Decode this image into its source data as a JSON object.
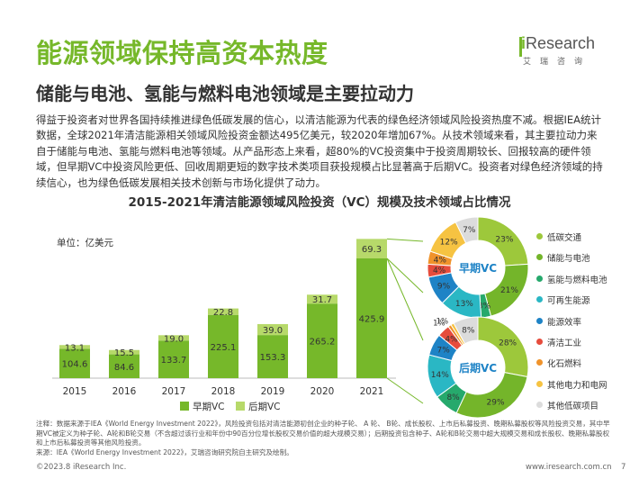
{
  "page": {
    "title": "能源领域保持高资本热度",
    "subtitle": "储能与电池、氢能与燃料电池领域是主要拉动力",
    "body": "得益于投资者对世界各国持续推进绿色低碳发展的信心，以清洁能源为代表的绿色经济领域风险投资热度不减。根据IEA统计数据，全球2021年清洁能源相关领域风险投资金额达495亿美元，较2020年增加67%。从技术领域来看，其主要拉动力来自于储能与电池、氢能与燃料电池等领域。从产品形态上来看，超80%的VC投资集中于投资周期较长、回报较高的硬件领域，但早期VC中投资风险更低、回收周期更短的数字技术类项目获投规模占比显著高于后期VC。投资者对绿色经济领域的持续信心，也为绿色低碳发展相关技术创新与市场化提供了动力。",
    "unit_label": "单位：亿美元",
    "notes": "注释：数据来源于IEA《World Energy Investment 2022》，风险投资包括对清洁能源初创企业的种子轮、 A 轮、 B轮、成长股权、上市后私募投资、晚期私募股权等风险投资交易，其中早期VC被定义为种子轮、A轮和B轮交易（不含超过该行业和年份中90百分位增长股权交易价值的超大规模交易）；后期投资包含种子、A轮和B轮交易中超大规模交易和成长股权、晚期私募股权和上市后私募投资等其他风险投资。",
    "source": "来源：IEA《World Energy Investment 2022》，艾瑞咨询研究院自主研究及绘制。",
    "footer_left": "©2023.8 iResearch Inc.",
    "footer_right": "www.iresearch.com.cn",
    "page_number": "7"
  },
  "logo": {
    "prefix": "i",
    "name": "Research",
    "sub": "艾瑞咨询"
  },
  "colors": {
    "early": "#76b82a",
    "late": "#b7d96a"
  },
  "chart_data": [
    {
      "type": "bar",
      "title": "2015-2021年清洁能源领域风险投资（VC）规模及技术领域占比情况",
      "unit": "单位：亿美元",
      "stacked": true,
      "categories": [
        "2015",
        "2016",
        "2017",
        "2018",
        "2019",
        "2020",
        "2021"
      ],
      "series": [
        {
          "name": "早期VC",
          "values": [
            104.6,
            84.6,
            133.7,
            225.1,
            153.3,
            265.2,
            425.9
          ]
        },
        {
          "name": "后期VC",
          "values": [
            13.1,
            15.5,
            19.0,
            22.8,
            39.0,
            31.7,
            69.3
          ]
        }
      ],
      "legend_position": "bottom"
    },
    {
      "type": "pie",
      "title": "早期VC",
      "labels": [
        "低碳交通",
        "储能与电池",
        "氢能与燃料电池",
        "可再生能源",
        "能源效率",
        "清洁工业",
        "化石燃料",
        "其他电力和电网",
        "其他低碳项目"
      ],
      "values": [
        23,
        21,
        3,
        13,
        9,
        4,
        4,
        12,
        7
      ],
      "value_labels": [
        "23%",
        "21%",
        "3%",
        "13%",
        "9%",
        "4%",
        "4%",
        "12%",
        "7%"
      ]
    },
    {
      "type": "pie",
      "title": "后期VC",
      "labels": [
        "低碳交通",
        "储能与电池",
        "氢能与燃料电池",
        "可再生能源",
        "能源效率",
        "清洁工业",
        "化石燃料",
        "其他电力和电网",
        "其他低碳项目"
      ],
      "values": [
        28,
        29,
        8,
        14,
        7,
        4,
        1,
        1,
        8
      ],
      "value_labels": [
        "28%",
        "29%",
        "8%",
        "14%",
        "7%",
        "4%",
        "1%",
        "1%",
        "8%"
      ]
    }
  ],
  "donut_legend": [
    {
      "label": "低碳交通",
      "color": "#9dc83b"
    },
    {
      "label": "储能与电池",
      "color": "#74b52a"
    },
    {
      "label": "氢能与燃料电池",
      "color": "#26a96c"
    },
    {
      "label": "可再生能源",
      "color": "#2ab7c4"
    },
    {
      "label": "能源效率",
      "color": "#1e83c6"
    },
    {
      "label": "清洁工业",
      "color": "#e64c3c"
    },
    {
      "label": "化石燃料",
      "color": "#f0932b"
    },
    {
      "label": "其他电力和电网",
      "color": "#f6c342"
    },
    {
      "label": "其他低碳项目",
      "color": "#dcdcdc"
    }
  ]
}
